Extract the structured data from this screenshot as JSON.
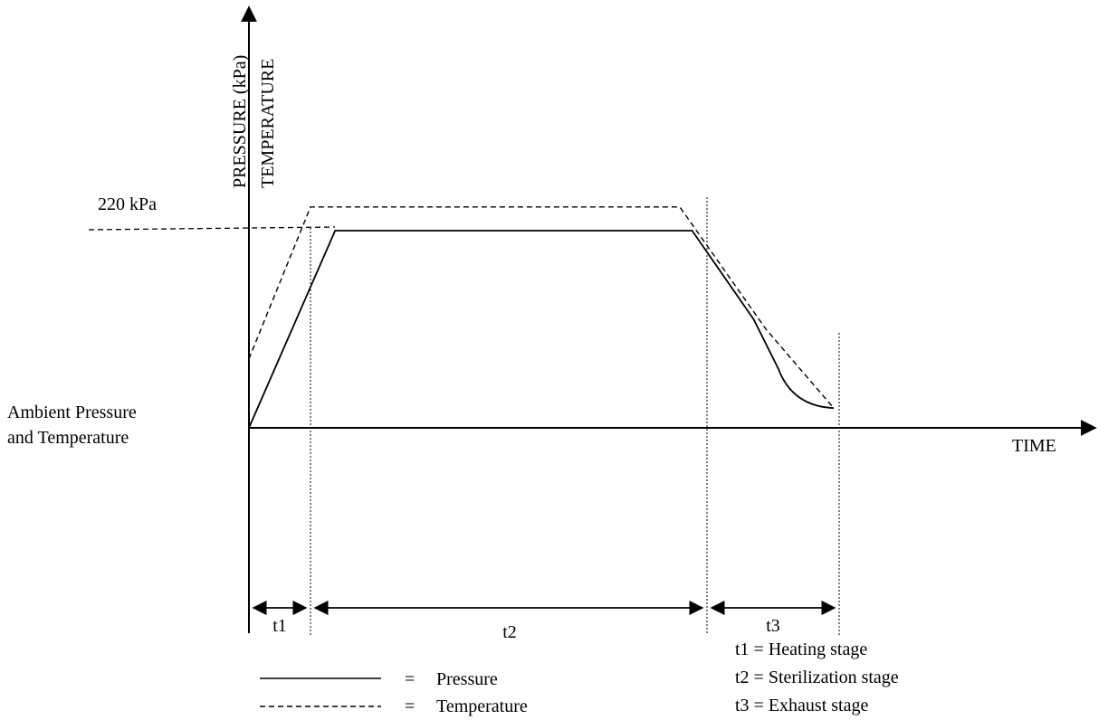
{
  "chart_data": {
    "type": "line",
    "y_axis_labels": [
      "PRESSURE (kPa)",
      "TEMPERATURE"
    ],
    "x_axis_label": "TIME",
    "y_reference_label": "220 kPa",
    "origin_label_line1": "Ambient Pressure",
    "origin_label_line2": "and Temperature",
    "series": [
      {
        "name": "Pressure",
        "line_style": "solid",
        "points": [
          [
            0,
            0
          ],
          [
            1.4,
            1
          ],
          [
            7.2,
            1
          ],
          [
            8.2,
            0.55
          ],
          [
            8.6,
            0.3
          ],
          [
            9.5,
            0.1
          ]
        ]
      },
      {
        "name": "Temperature",
        "line_style": "dashed",
        "points": [
          [
            0,
            0.35
          ],
          [
            1.0,
            1.12
          ],
          [
            7.0,
            1.12
          ],
          [
            8.4,
            0.5
          ],
          [
            9.5,
            0.1
          ]
        ]
      }
    ],
    "stages": [
      {
        "label": "t1",
        "start": 0,
        "end": 1.0
      },
      {
        "label": "t2",
        "start": 1.0,
        "end": 7.0
      },
      {
        "label": "t3",
        "start": 7.0,
        "end": 9.5
      }
    ],
    "stage_definitions": [
      "t1 = Heating stage",
      "t2 = Sterilization stage",
      "t3 = Exhaust stage"
    ],
    "legend": [
      {
        "symbol_label": "=",
        "name": "Pressure",
        "line_style": "solid"
      },
      {
        "symbol_label": "=",
        "name": "Temperature",
        "line_style": "dashed"
      }
    ]
  }
}
